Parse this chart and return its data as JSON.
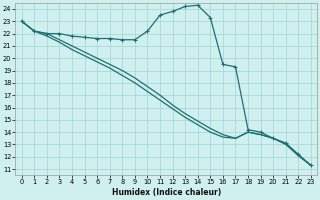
{
  "xlabel": "Humidex (Indice chaleur)",
  "background_color": "#d0f0f0",
  "grid_color": "#a8d8d8",
  "line_color": "#1e7070",
  "xlim": [
    -0.5,
    23.5
  ],
  "ylim": [
    10.5,
    24.5
  ],
  "xticks": [
    0,
    1,
    2,
    3,
    4,
    5,
    6,
    7,
    8,
    9,
    10,
    11,
    12,
    13,
    14,
    15,
    16,
    17,
    18,
    19,
    20,
    21,
    22,
    23
  ],
  "yticks": [
    11,
    12,
    13,
    14,
    15,
    16,
    17,
    18,
    19,
    20,
    21,
    22,
    23,
    24
  ],
  "series1_x": [
    0,
    1,
    2,
    3,
    4,
    5,
    6,
    7,
    8,
    9,
    10,
    11,
    12,
    13,
    14,
    15,
    16,
    17,
    18,
    19,
    20,
    21,
    22,
    23
  ],
  "series1_y": [
    23.0,
    22.2,
    22.0,
    22.0,
    21.8,
    21.7,
    21.6,
    21.6,
    21.5,
    21.5,
    22.2,
    23.5,
    23.8,
    24.2,
    24.3,
    23.3,
    19.5,
    19.3,
    14.2,
    14.0,
    13.5,
    13.1,
    12.2,
    11.3
  ],
  "series2_x": [
    0,
    1,
    2,
    3,
    4,
    5,
    6,
    7,
    8,
    9,
    10,
    11,
    12,
    13,
    14,
    15,
    16,
    17,
    18,
    19,
    20,
    21,
    22,
    23
  ],
  "series2_y": [
    23.0,
    22.2,
    21.8,
    21.3,
    20.7,
    20.2,
    19.7,
    19.2,
    18.6,
    18.0,
    17.3,
    16.6,
    15.9,
    15.2,
    14.6,
    14.0,
    13.6,
    13.5,
    14.0,
    13.8,
    13.5,
    13.0,
    12.1,
    11.3
  ],
  "series3_x": [
    0,
    1,
    2,
    3,
    4,
    5,
    6,
    7,
    8,
    9,
    10,
    11,
    12,
    13,
    14,
    15,
    16,
    17,
    18,
    19,
    20,
    21,
    22,
    23
  ],
  "series3_y": [
    23.0,
    22.2,
    22.0,
    21.5,
    21.0,
    20.5,
    20.0,
    19.5,
    19.0,
    18.4,
    17.7,
    17.0,
    16.2,
    15.5,
    14.9,
    14.3,
    13.8,
    13.5,
    14.0,
    13.8,
    13.5,
    13.1,
    12.1,
    11.3
  ]
}
